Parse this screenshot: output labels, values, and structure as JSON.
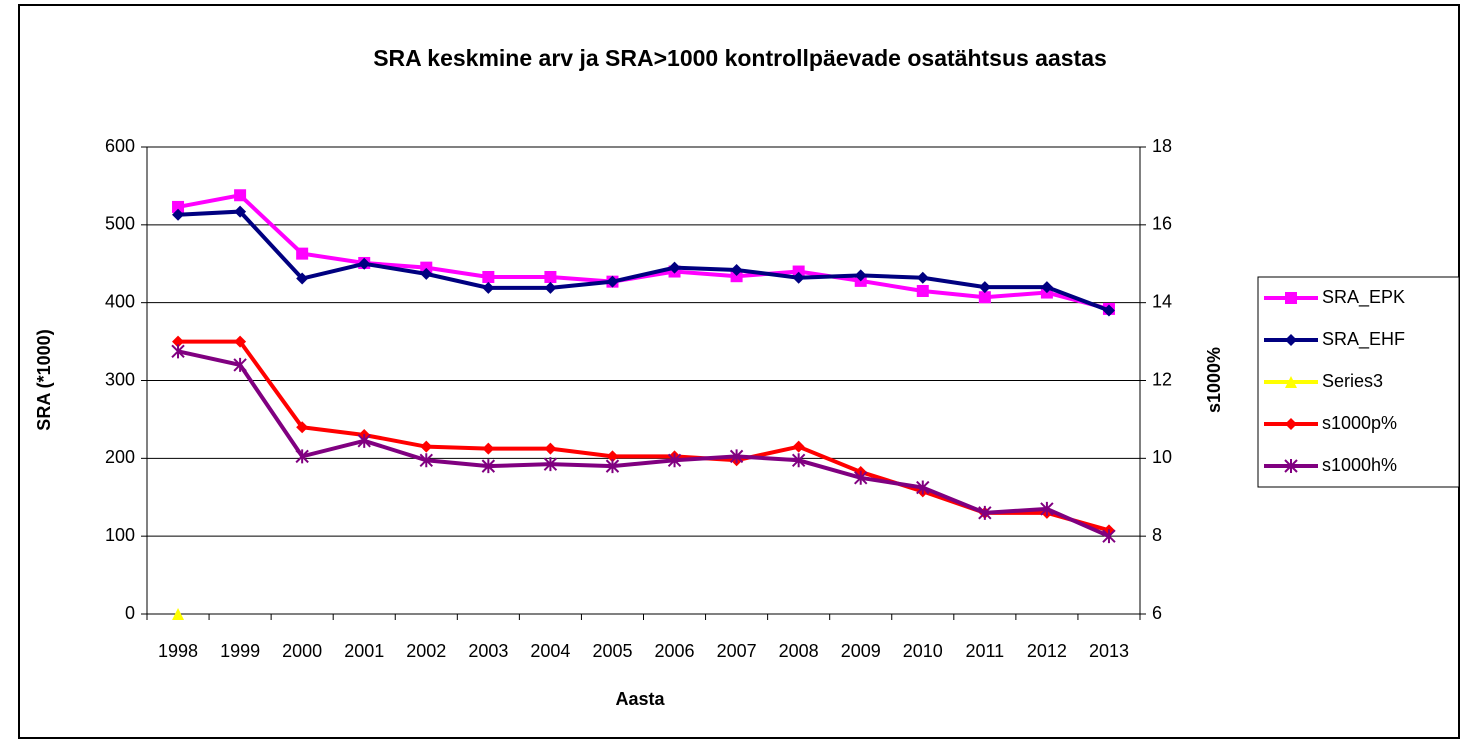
{
  "chart_data": {
    "type": "line",
    "title": "SRA keskmine arv ja SRA>1000 kontrollpäevade osatähtsus aastas",
    "x_label": "Aasta",
    "y_label": "SRA (*1000)",
    "y2_label": "s1000%",
    "categories": [
      "1998",
      "1999",
      "2000",
      "2001",
      "2002",
      "2003",
      "2004",
      "2005",
      "2006",
      "2007",
      "2008",
      "2009",
      "2010",
      "2011",
      "2012",
      "2013"
    ],
    "series": [
      {
        "name": "SRA_EPK",
        "color": "#ff00ff",
        "marker": "square",
        "values": [
          523,
          538,
          463,
          451,
          445,
          433,
          433,
          427,
          440,
          434,
          440,
          428,
          415,
          407,
          413,
          392
        ]
      },
      {
        "name": "SRA_EHF",
        "color": "#000080",
        "marker": "diamond",
        "values": [
          513,
          517,
          431,
          450,
          437,
          419,
          419,
          427,
          445,
          442,
          432,
          435,
          432,
          420,
          420,
          390
        ]
      },
      {
        "name": "Series3",
        "color": "#ffff00",
        "marker": "triangle",
        "values": [
          0,
          null,
          null,
          null,
          null,
          null,
          null,
          null,
          null,
          null,
          null,
          null,
          null,
          null,
          null,
          null
        ]
      },
      {
        "name": "s1000p%",
        "color": "#ff0000",
        "marker": "diamond",
        "axis": "y2",
        "values": [
          13.0,
          13.0,
          10.8,
          10.6,
          10.3,
          10.25,
          10.25,
          10.05,
          10.05,
          9.95,
          10.3,
          9.65,
          9.15,
          8.6,
          8.6,
          8.15
        ]
      },
      {
        "name": "s1000h%",
        "color": "#800080",
        "marker": "asterisk",
        "axis": "y2",
        "values": [
          12.75,
          12.4,
          10.05,
          10.45,
          9.95,
          9.8,
          9.85,
          9.8,
          9.95,
          10.05,
          9.95,
          9.5,
          9.25,
          8.6,
          8.7,
          8.0
        ]
      }
    ],
    "ylim": [
      0,
      600
    ],
    "yticks": [
      0,
      100,
      200,
      300,
      400,
      500,
      600
    ],
    "y2lim": [
      6,
      18
    ],
    "y2ticks": [
      6,
      8,
      10,
      12,
      14,
      16,
      18
    ],
    "grid": true,
    "legend": "right"
  }
}
